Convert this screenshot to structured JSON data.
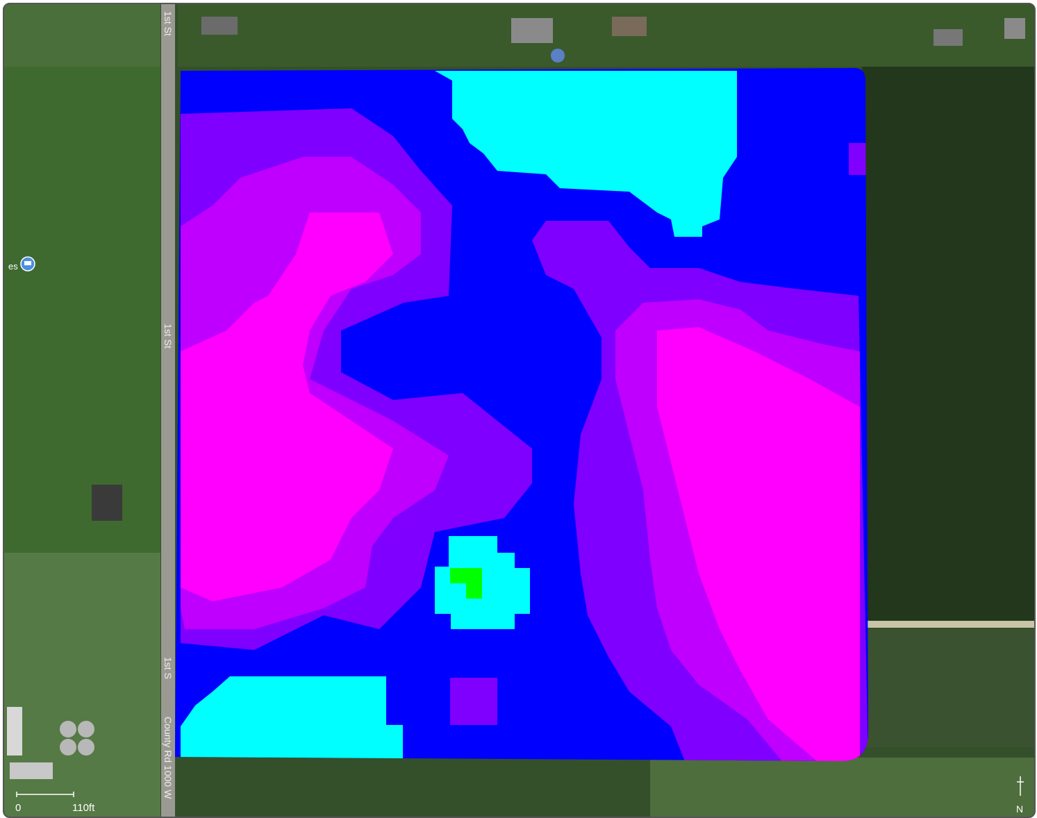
{
  "map": {
    "road_labels": [
      "1st St",
      "1st St",
      "1st S",
      "County Rd 1000 W"
    ],
    "poi": {
      "label": "es",
      "icon": "place-pin-icon"
    },
    "scale": {
      "zero": "0",
      "distance": "110ft"
    },
    "north_label": "N",
    "zone_colors": {
      "low": "#00ff00",
      "low_mid": "#00ffff",
      "mid": "#0000ff",
      "mid_high": "#8000ff",
      "high": "#bf00ff",
      "highest": "#ff00ff"
    }
  }
}
